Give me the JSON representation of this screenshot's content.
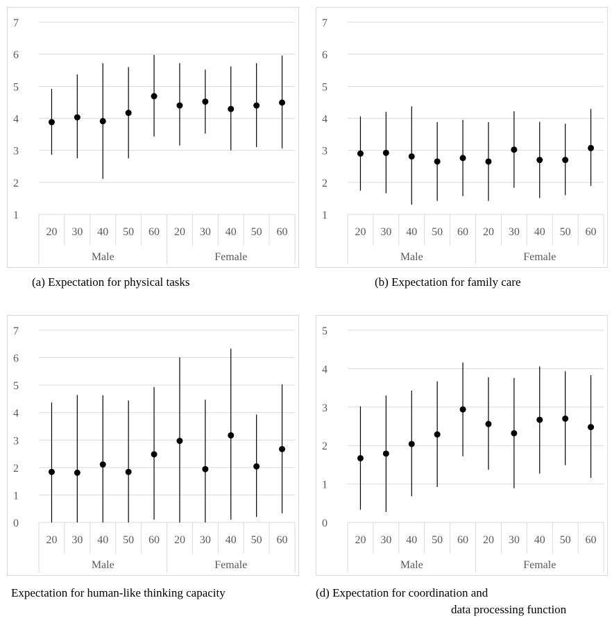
{
  "chart_data": [
    {
      "type": "scatter",
      "caption": "(a)   Expectation for physical tasks",
      "ylim": [
        1,
        7
      ],
      "yticks": [
        1,
        2,
        3,
        4,
        5,
        6,
        7
      ],
      "groups": [
        "Male",
        "Female"
      ],
      "categories": [
        "20",
        "30",
        "40",
        "50",
        "60",
        "20",
        "30",
        "40",
        "50",
        "60"
      ],
      "series": [
        {
          "values": [
            3.88,
            4.03,
            3.91,
            4.17,
            4.69,
            4.4,
            4.52,
            4.29,
            4.4,
            4.49
          ],
          "err_low": [
            2.86,
            2.75,
            2.11,
            2.75,
            3.43,
            3.15,
            3.52,
            3.0,
            3.1,
            3.06
          ],
          "err_high": [
            4.92,
            5.37,
            5.72,
            5.6,
            5.98,
            5.72,
            5.52,
            5.62,
            5.72,
            5.96
          ]
        }
      ]
    },
    {
      "type": "scatter",
      "caption": "(b) Expectation for family care",
      "ylim": [
        1,
        7
      ],
      "yticks": [
        1,
        2,
        3,
        4,
        5,
        6,
        7
      ],
      "groups": [
        "Male",
        "Female"
      ],
      "categories": [
        "20",
        "30",
        "40",
        "50",
        "60",
        "20",
        "30",
        "40",
        "50",
        "60"
      ],
      "series": [
        {
          "values": [
            2.9,
            2.92,
            2.81,
            2.65,
            2.76,
            2.65,
            3.02,
            2.7,
            2.7,
            3.07
          ],
          "err_low": [
            1.74,
            1.66,
            1.3,
            1.42,
            1.57,
            1.42,
            1.83,
            1.51,
            1.6,
            1.89
          ],
          "err_high": [
            4.06,
            4.2,
            4.37,
            3.88,
            3.95,
            3.88,
            4.22,
            3.89,
            3.83,
            4.29
          ]
        }
      ]
    },
    {
      "type": "scatter",
      "caption": "Expectation for human-like thinking capacity",
      "ylim": [
        0,
        7
      ],
      "yticks": [
        0,
        1,
        2,
        3,
        4,
        5,
        6,
        7
      ],
      "groups": [
        "Male",
        "Female"
      ],
      "categories": [
        "20",
        "30",
        "40",
        "50",
        "60",
        "20",
        "30",
        "40",
        "50",
        "60"
      ],
      "series": [
        {
          "values": [
            1.84,
            1.81,
            2.11,
            1.84,
            2.48,
            2.97,
            1.94,
            3.17,
            2.04,
            2.67
          ],
          "err_low": [
            0.0,
            0.0,
            0.0,
            0.0,
            0.1,
            0.0,
            0.0,
            0.1,
            0.2,
            0.33
          ],
          "err_high": [
            4.37,
            4.64,
            4.63,
            4.44,
            4.93,
            6.01,
            4.47,
            6.33,
            3.93,
            5.03
          ]
        }
      ]
    },
    {
      "type": "scatter",
      "caption": "(d) Expectation for coordination and",
      "caption2": "data processing function",
      "ylim": [
        0,
        5
      ],
      "yticks": [
        0,
        1,
        2,
        3,
        4,
        5
      ],
      "groups": [
        "Male",
        "Female"
      ],
      "categories": [
        "20",
        "30",
        "40",
        "50",
        "60",
        "20",
        "30",
        "40",
        "50",
        "60"
      ],
      "series": [
        {
          "values": [
            1.67,
            1.79,
            2.04,
            2.29,
            2.94,
            2.56,
            2.32,
            2.67,
            2.7,
            2.48
          ],
          "err_low": [
            0.33,
            0.27,
            0.68,
            0.92,
            1.72,
            1.37,
            0.89,
            1.27,
            1.49,
            1.16
          ],
          "err_high": [
            3.02,
            3.3,
            3.43,
            3.67,
            4.16,
            3.78,
            3.76,
            4.06,
            3.93,
            3.83
          ]
        }
      ]
    }
  ]
}
